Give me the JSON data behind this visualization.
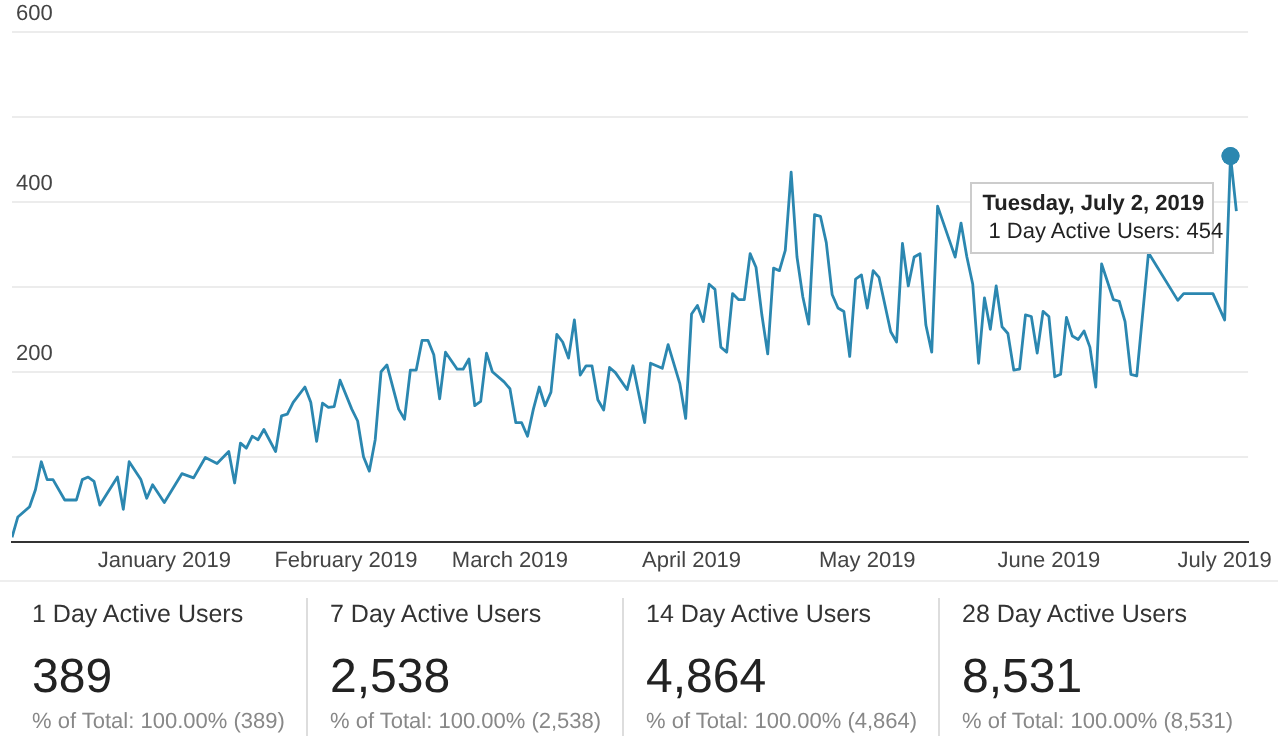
{
  "chart_data": [
    {
      "type": "line",
      "x": [
        "2018-12-06",
        "2018-12-07",
        "2018-12-09",
        "2018-12-10",
        "2018-12-11",
        "2018-12-12",
        "2018-12-13",
        "2018-12-15",
        "2018-12-17",
        "2018-12-18",
        "2018-12-19",
        "2018-12-20",
        "2018-12-21",
        "2018-12-24",
        "2018-12-25",
        "2018-12-26",
        "2018-12-28",
        "2018-12-29",
        "2018-12-30",
        "2019-01-01",
        "2019-01-04",
        "2019-01-06",
        "2019-01-08",
        "2019-01-10",
        "2019-01-11",
        "2019-01-12",
        "2019-01-13",
        "2019-01-14",
        "2019-01-15",
        "2019-01-16",
        "2019-01-17",
        "2019-01-18",
        "2019-01-20",
        "2019-01-21",
        "2019-01-22",
        "2019-01-23",
        "2019-01-25",
        "2019-01-26",
        "2019-01-27",
        "2019-01-28",
        "2019-01-29",
        "2019-01-30",
        "2019-01-31",
        "2019-02-02",
        "2019-02-03",
        "2019-02-04",
        "2019-02-05",
        "2019-02-06",
        "2019-02-07",
        "2019-02-08",
        "2019-02-10",
        "2019-02-11",
        "2019-02-12",
        "2019-02-13",
        "2019-02-14",
        "2019-02-15",
        "2019-02-16",
        "2019-02-17",
        "2019-02-18",
        "2019-02-20",
        "2019-02-21",
        "2019-02-22",
        "2019-02-23",
        "2019-02-24",
        "2019-02-25",
        "2019-02-26",
        "2019-02-28",
        "2019-03-01",
        "2019-03-02",
        "2019-03-03",
        "2019-03-04",
        "2019-03-05",
        "2019-03-06",
        "2019-03-07",
        "2019-03-08",
        "2019-03-09",
        "2019-03-10",
        "2019-03-11",
        "2019-03-12",
        "2019-03-13",
        "2019-03-14",
        "2019-03-15",
        "2019-03-16",
        "2019-03-17",
        "2019-03-18",
        "2019-03-19",
        "2019-03-21",
        "2019-03-22",
        "2019-03-24",
        "2019-03-25",
        "2019-03-27",
        "2019-03-28",
        "2019-03-30",
        "2019-03-31",
        "2019-04-01",
        "2019-04-02",
        "2019-04-03",
        "2019-04-04",
        "2019-04-05",
        "2019-04-06",
        "2019-04-07",
        "2019-04-08",
        "2019-04-09",
        "2019-04-10",
        "2019-04-11",
        "2019-04-12",
        "2019-04-13",
        "2019-04-14",
        "2019-04-15",
        "2019-04-16",
        "2019-04-17",
        "2019-04-18",
        "2019-04-19",
        "2019-04-20",
        "2019-04-21",
        "2019-04-22",
        "2019-04-23",
        "2019-04-24",
        "2019-04-25",
        "2019-04-26",
        "2019-04-27",
        "2019-04-28",
        "2019-04-29",
        "2019-04-30",
        "2019-05-01",
        "2019-05-02",
        "2019-05-03",
        "2019-05-05",
        "2019-05-06",
        "2019-05-07",
        "2019-05-08",
        "2019-05-09",
        "2019-05-10",
        "2019-05-11",
        "2019-05-12",
        "2019-05-13",
        "2019-05-15",
        "2019-05-16",
        "2019-05-17",
        "2019-05-18",
        "2019-05-19",
        "2019-05-20",
        "2019-05-21",
        "2019-05-22",
        "2019-05-23",
        "2019-05-24",
        "2019-05-25",
        "2019-05-26",
        "2019-05-27",
        "2019-05-28",
        "2019-05-29",
        "2019-05-30",
        "2019-05-31",
        "2019-06-01",
        "2019-06-02",
        "2019-06-03",
        "2019-06-04",
        "2019-06-05",
        "2019-06-06",
        "2019-06-07",
        "2019-06-08",
        "2019-06-09",
        "2019-06-10",
        "2019-06-12",
        "2019-06-13",
        "2019-06-14",
        "2019-06-15",
        "2019-06-16",
        "2019-06-18",
        "2019-06-19",
        "2019-06-20",
        "2019-06-21",
        "2019-06-22",
        "2019-06-23",
        "2019-06-24",
        "2019-06-25",
        "2019-06-26",
        "2019-06-27",
        "2019-06-28",
        "2019-06-29",
        "2019-07-01",
        "2019-07-02",
        "2019-07-03"
      ],
      "series": [
        {
          "color": "#2b87b0",
          "values": [
            5,
            29,
            41,
            61,
            94,
            73,
            73,
            49,
            49,
            73,
            76,
            71,
            43,
            76,
            38,
            94,
            73,
            51,
            67,
            46,
            80,
            75,
            99,
            92,
            99,
            106,
            69,
            116,
            110,
            124,
            120,
            132,
            106,
            148,
            150,
            164,
            182,
            164,
            118,
            163,
            158,
            159,
            190,
            156,
            142,
            100,
            83,
            120,
            200,
            208,
            156,
            144,
            202,
            202,
            237,
            237,
            220,
            168,
            223,
            203,
            203,
            215,
            160,
            165,
            222,
            200,
            188,
            180,
            140,
            140,
            124,
            156,
            182,
            160,
            176,
            244,
            235,
            216,
            261,
            196,
            207,
            207,
            167,
            155,
            205,
            199,
            179,
            207,
            140,
            210,
            204,
            232,
            186,
            145,
            268,
            278,
            259,
            303,
            297,
            229,
            223,
            292,
            285,
            285,
            339,
            323,
            267,
            221,
            322,
            319,
            343,
            435,
            335,
            288,
            256,
            385,
            383,
            352,
            291,
            275,
            271,
            218,
            309,
            314,
            275,
            319,
            311,
            247,
            235,
            351,
            301,
            335,
            339,
            255,
            223,
            395,
            355,
            335,
            375,
            335,
            303,
            210,
            287,
            250,
            301,
            253,
            245,
            202,
            203,
            267,
            265,
            222,
            271,
            265,
            194,
            197,
            264,
            242,
            238,
            248,
            229,
            182,
            327,
            285,
            283,
            259,
            197,
            195,
            340,
            null,
            null,
            null,
            null,
            284,
            292,
            null,
            null,
            null,
            null,
            292,
            261,
            454,
            389
          ]
        }
      ],
      "xlim": [
        "2018-12-06",
        "2019-07-05"
      ],
      "xticks": [
        {
          "value": "2019-01-01",
          "label": "January 2019"
        },
        {
          "value": "2019-02-01",
          "label": "February 2019"
        },
        {
          "value": "2019-03-01",
          "label": "March 2019"
        },
        {
          "value": "2019-04-01",
          "label": "April 2019"
        },
        {
          "value": "2019-05-01",
          "label": "May 2019"
        },
        {
          "value": "2019-06-01",
          "label": "June 2019"
        },
        {
          "value": "2019-07-01",
          "label": "July 2019"
        }
      ],
      "ylim": [
        0,
        600
      ],
      "yticks": [
        {
          "value": 0,
          "label": null
        },
        {
          "value": 100,
          "label": null
        },
        200,
        {
          "value": 300,
          "label": null
        },
        400,
        {
          "value": 500,
          "label": null
        },
        600
      ],
      "grid": "y",
      "annotations": [
        {
          "text": "Tuesday, July 2, 2019",
          "x": "2019-07-02",
          "y": 454
        },
        {
          "text": "1 Day Active Users: 454",
          "x": "2019-07-02",
          "y": 454
        }
      ]
    },
    {
      "type": "other",
      "categories": [
        "1 Day Active Users",
        "7 Day Active Users",
        "14 Day Active Users",
        "28 Day Active Users"
      ],
      "annotations": [
        "389",
        "% of Total: 100.00% (389)",
        "2,538",
        "% of Total: 100.00% (2,538)",
        "4,864",
        "% of Total: 100.00% (4,864)",
        "8,531",
        "% of Total: 100.00% (8,531)"
      ]
    }
  ]
}
